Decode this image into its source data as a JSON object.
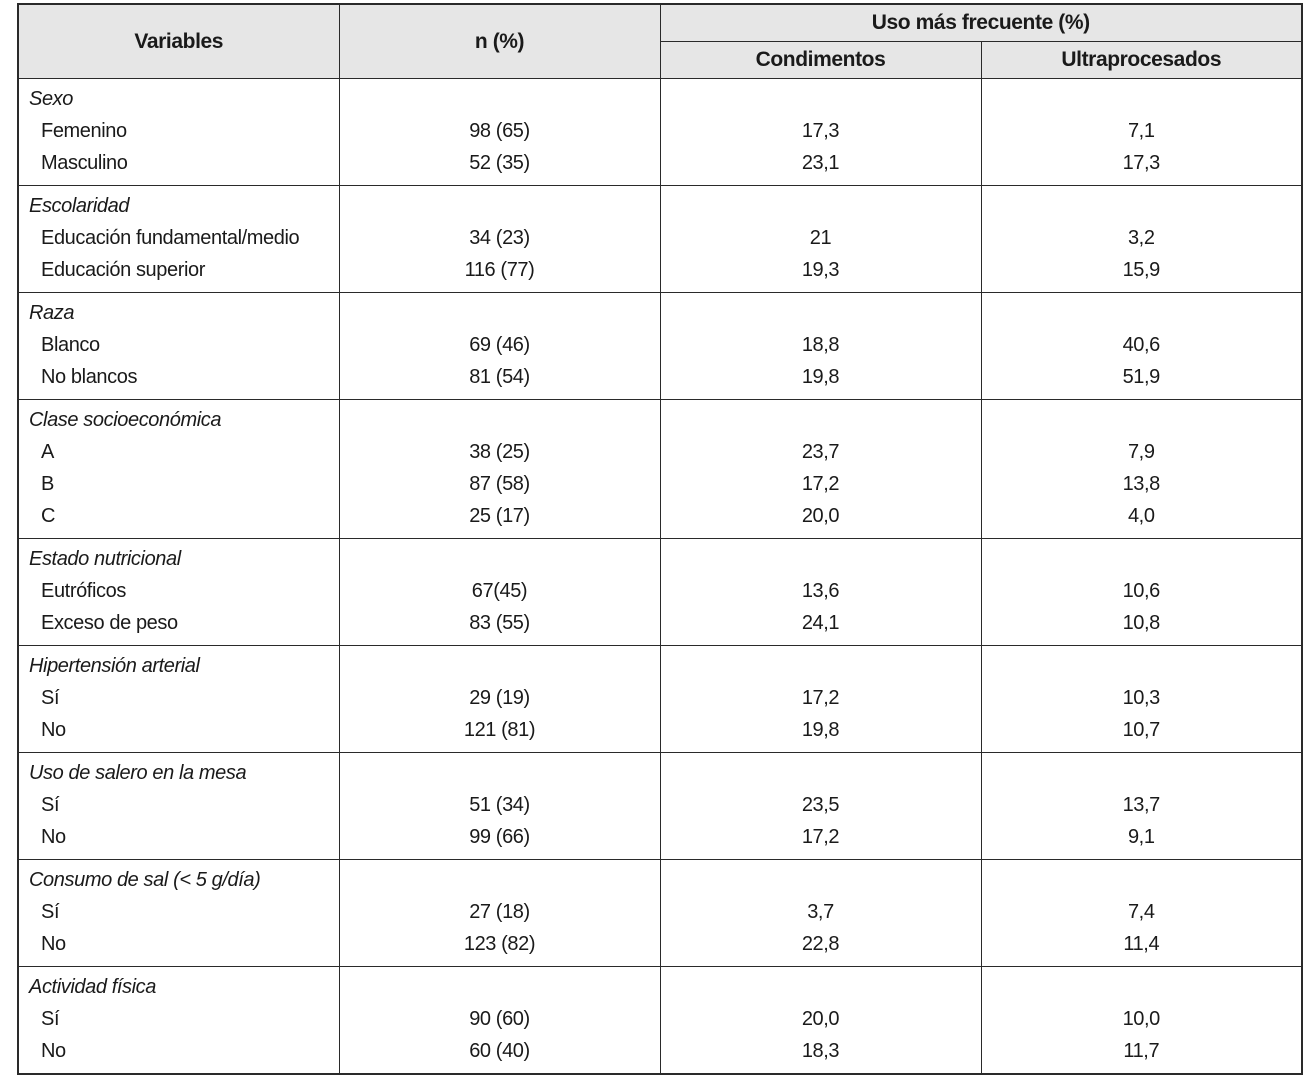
{
  "header": {
    "variables": "Variables",
    "n": "n (%)",
    "group": "Uso más frecuente (%)",
    "col1": "Condimentos",
    "col2": "Ultraprocesados"
  },
  "groups": [
    {
      "title": "Sexo",
      "rows": [
        [
          "Femenino",
          "98 (65)",
          "17,3",
          "7,1"
        ],
        [
          "Masculino",
          "52 (35)",
          "23,1",
          "17,3"
        ]
      ]
    },
    {
      "title": "Escolaridad",
      "rows": [
        [
          "Educación fundamental/medio",
          "34 (23)",
          "21",
          "3,2"
        ],
        [
          "Educación superior",
          "116 (77)",
          "19,3",
          "15,9"
        ]
      ]
    },
    {
      "title": "Raza",
      "rows": [
        [
          "Blanco",
          "69 (46)",
          "18,8",
          "40,6"
        ],
        [
          "No blancos",
          "81 (54)",
          "19,8",
          "51,9"
        ]
      ]
    },
    {
      "title": "Clase socioeconómica",
      "rows": [
        [
          "A",
          "38 (25)",
          "23,7",
          "7,9"
        ],
        [
          "B",
          "87 (58)",
          "17,2",
          "13,8"
        ],
        [
          "C",
          "25 (17)",
          "20,0",
          "4,0"
        ]
      ]
    },
    {
      "title": "Estado nutricional",
      "rows": [
        [
          "Eutróficos",
          "67(45)",
          "13,6",
          "10,6"
        ],
        [
          "Exceso de peso",
          "83 (55)",
          "24,1",
          "10,8"
        ]
      ]
    },
    {
      "title": "Hipertensión arterial",
      "rows": [
        [
          "Sí",
          "29 (19)",
          "17,2",
          "10,3"
        ],
        [
          "No",
          "121 (81)",
          "19,8",
          "10,7"
        ]
      ]
    },
    {
      "title": "Uso de salero en la mesa",
      "rows": [
        [
          "Sí",
          "51 (34)",
          "23,5",
          "13,7"
        ],
        [
          "No",
          "99 (66)",
          "17,2",
          "9,1"
        ]
      ]
    },
    {
      "title": "Consumo de sal (< 5 g/día)",
      "rows": [
        [
          "Sí",
          "27 (18)",
          "3,7",
          "7,4"
        ],
        [
          "No",
          "123 (82)",
          "22,8",
          "11,4"
        ]
      ]
    },
    {
      "title": "Actividad física",
      "rows": [
        [
          "Sí",
          "90 (60)",
          "20,0",
          "10,0"
        ],
        [
          "No",
          "60 (40)",
          "18,3",
          "11,7"
        ]
      ]
    }
  ]
}
